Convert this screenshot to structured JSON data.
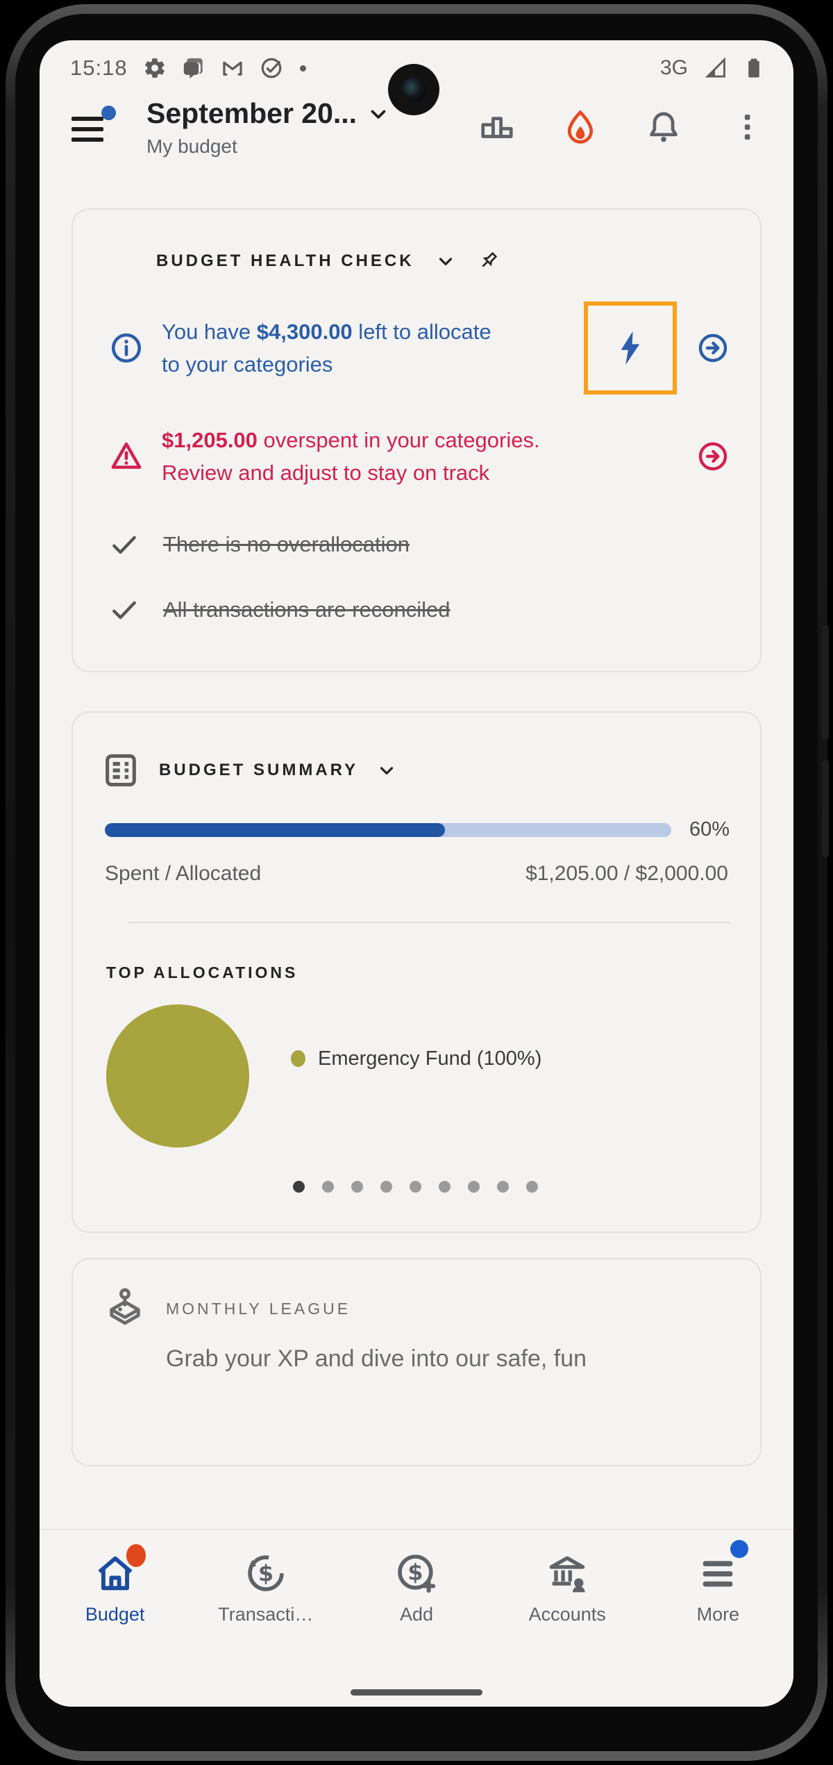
{
  "status_bar": {
    "time": "15:18",
    "network": "3G"
  },
  "header": {
    "title": "September 20...",
    "subtitle": "My budget"
  },
  "health_check": {
    "title": "BUDGET HEALTH CHECK",
    "info": {
      "prefix": "You have ",
      "amount": "$4,300.00",
      "suffix": " left to allocate to your categories"
    },
    "warning": {
      "amount": "$1,205.00",
      "suffix": " overspent in your categories. Review and adjust to stay on track"
    },
    "done_items": [
      "There is no overallocation",
      "All transactions are reconciled"
    ]
  },
  "summary": {
    "title": "BUDGET SUMMARY",
    "progress_percent": 60,
    "progress_label": "60%",
    "spent_label": "Spent / Allocated",
    "spent_value": "$1,205.00 / $2,000.00",
    "top_allocations_title": "TOP ALLOCATIONS",
    "legend_label": "Emergency Fund (100%)",
    "pagination": {
      "count": 9,
      "active": 0
    }
  },
  "chart_data": {
    "type": "pie",
    "donut": true,
    "title": "TOP ALLOCATIONS",
    "labels": [
      "Emergency Fund"
    ],
    "values": [
      100
    ],
    "colors": [
      "#a8a43e"
    ],
    "legend_position": "right"
  },
  "league": {
    "title": "MONTHLY LEAGUE",
    "text": "Grab your XP and dive into our safe, fun"
  },
  "nav": {
    "items": [
      {
        "label": "Budget"
      },
      {
        "label": "Transacti…"
      },
      {
        "label": "Add"
      },
      {
        "label": "Accounts"
      },
      {
        "label": "More"
      }
    ]
  },
  "colors": {
    "accent_blue": "#2b5da8",
    "progress_blue": "#2254a4",
    "progress_track": "#b9c9e6",
    "alert_red": "#d3204f",
    "highlight_orange": "#f6a21d",
    "donut_olive": "#a8a43e",
    "nav_active_blue": "#1a4ba0",
    "badge_red": "#e0481b",
    "badge_blue": "#1d5fd2",
    "flame_orange": "#e8491f"
  }
}
